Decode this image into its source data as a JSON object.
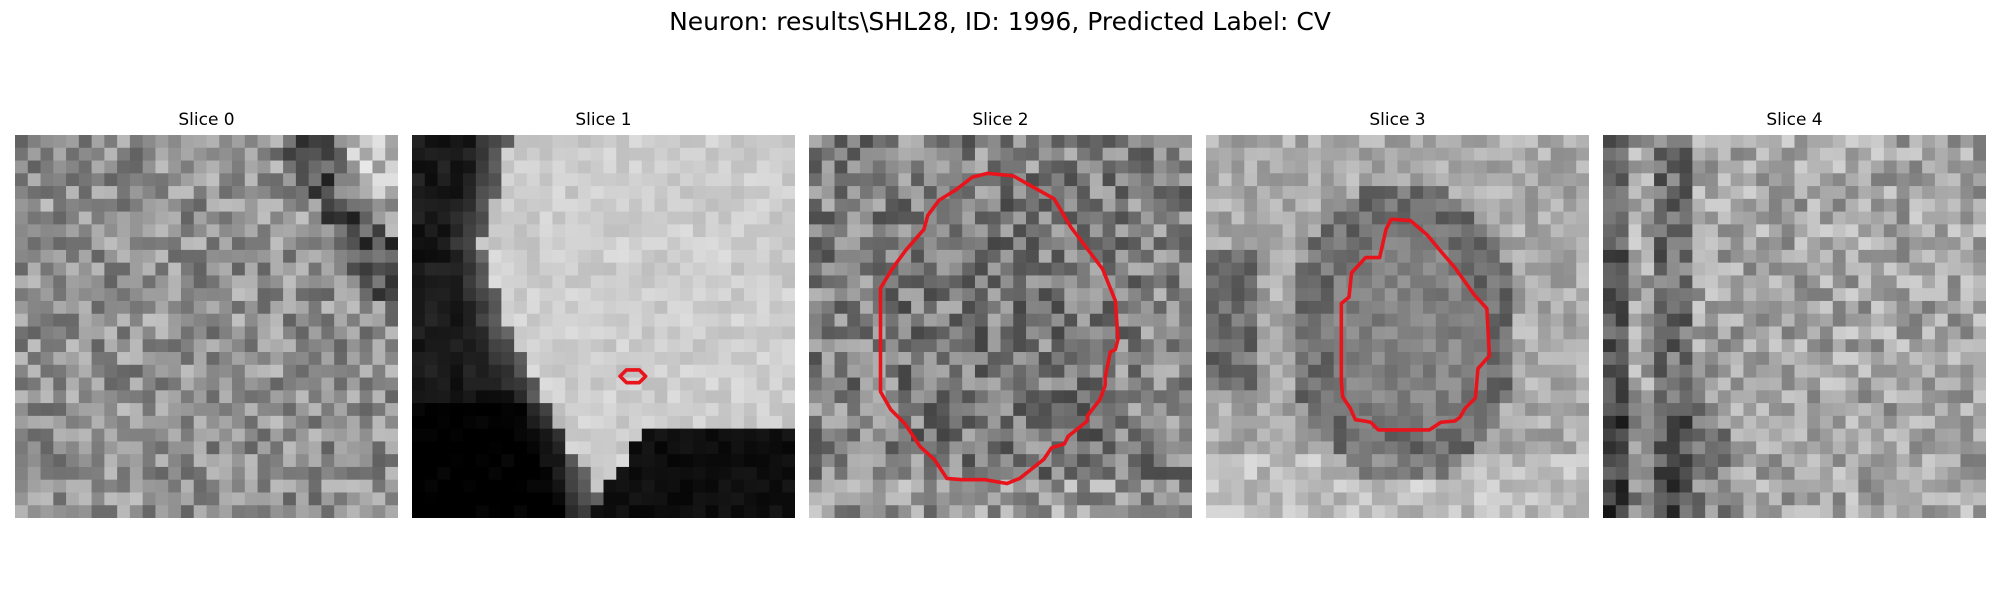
{
  "figure": {
    "title": "Neuron: results\\SHL28, ID: 1996, Predicted Label: CV",
    "panels": [
      {
        "label": "Slice 0",
        "contour": false
      },
      {
        "label": "Slice 1",
        "contour": true
      },
      {
        "label": "Slice 2",
        "contour": true
      },
      {
        "label": "Slice 3",
        "contour": true
      },
      {
        "label": "Slice 4",
        "contour": false
      }
    ],
    "contour_color": "#e8131b",
    "colormap": "grayscale"
  }
}
